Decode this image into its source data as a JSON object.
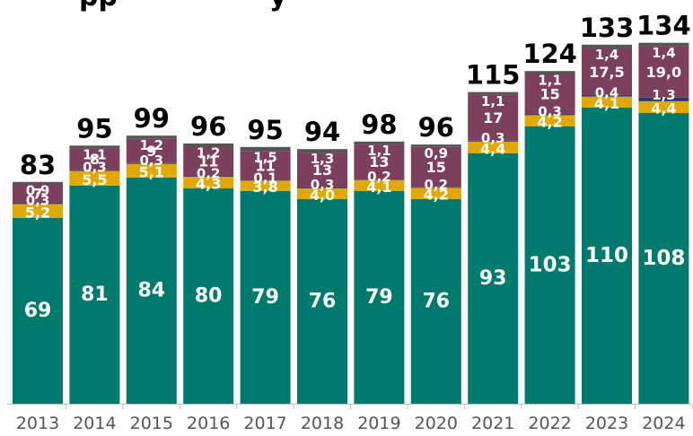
{
  "chart_data": {
    "type": "bar",
    "stacked": true,
    "title": "",
    "xlabel": "",
    "ylabel": "",
    "ylim": [
      0,
      140
    ],
    "grid": false,
    "legend": "none",
    "categories": [
      "2013",
      "2014",
      "2015",
      "2016",
      "2017",
      "2018",
      "2019",
      "2020",
      "2021",
      "2022",
      "2023",
      "2024"
    ],
    "totals": [
      "83",
      "95",
      "99",
      "96",
      "95",
      "94",
      "98",
      "96",
      "115",
      "124",
      "133",
      "134"
    ],
    "series": [
      {
        "color": "#007a6c",
        "values": [
          69,
          81,
          84,
          80,
          79,
          76,
          79,
          76,
          93,
          103,
          110,
          108
        ],
        "labels": [
          "69",
          "81",
          "84",
          "80",
          "79",
          "76",
          "79",
          "76",
          "93",
          "103",
          "110",
          "108"
        ]
      },
      {
        "color": "#e0a800",
        "values": [
          5.2,
          5.5,
          5.1,
          4.3,
          3.8,
          4.0,
          4.1,
          4.2,
          4.4,
          4.2,
          4.1,
          4.4
        ],
        "labels": [
          "5,2",
          "5,5",
          "5,1",
          "4,3",
          "3,8",
          "4,0",
          "4,1",
          "4,2",
          "4,4",
          "4,2",
          "4,1",
          "4,4"
        ]
      },
      {
        "color": "#1f3a7a",
        "values": [
          0.3,
          0.3,
          0.3,
          0.2,
          0.1,
          0.3,
          0.2,
          0.2,
          0.3,
          0.3,
          0.4,
          1.3
        ],
        "labels": [
          "0,3",
          "0,3",
          "0,3",
          "0,2",
          "0,1",
          "0,3",
          "0,2",
          "0,2",
          "0,3",
          "0,3",
          "0,4",
          "1,3"
        ]
      },
      {
        "color": "#7d3f5e",
        "values": [
          7,
          8,
          9,
          11,
          11,
          13,
          13,
          15,
          17,
          15,
          17.5,
          19.0
        ],
        "labels": [
          "7",
          "8",
          "9",
          "11",
          "11",
          "13",
          "13",
          "15",
          "17",
          "15",
          "17,5",
          "19,0"
        ]
      },
      {
        "color": "#555555",
        "values": [
          0.9,
          1.1,
          1.2,
          1.2,
          1.5,
          1.3,
          1.1,
          0.9,
          1.1,
          1.1,
          1.4,
          1.4
        ],
        "labels": [
          "0,9",
          "1,1",
          "1,2",
          "1,2",
          "1,5",
          "1,3",
          "1,1",
          "0,9",
          "1,1",
          "1,1",
          "1,4",
          "1,4"
        ]
      }
    ]
  }
}
